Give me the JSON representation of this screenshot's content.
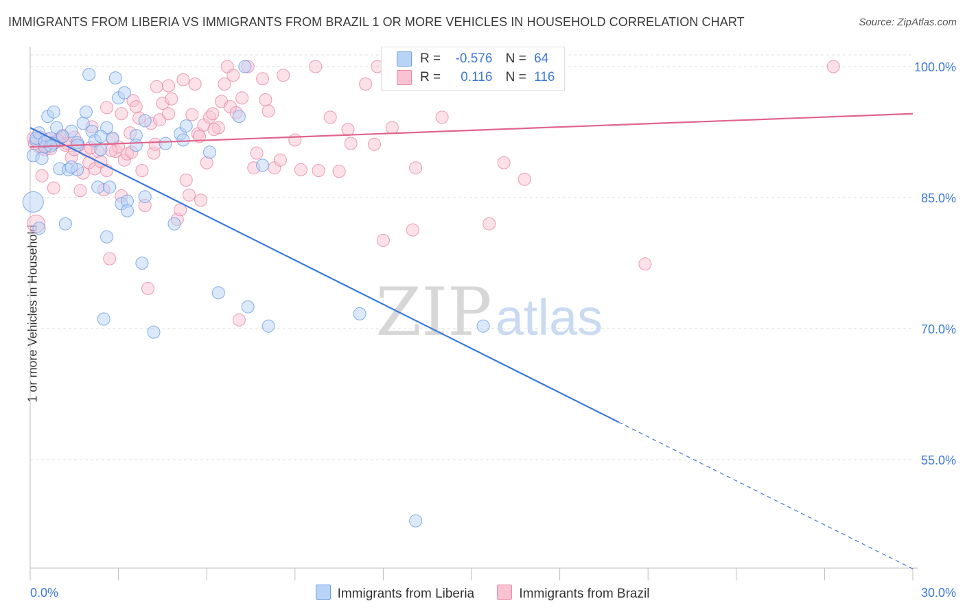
{
  "title": "IMMIGRANTS FROM LIBERIA VS IMMIGRANTS FROM BRAZIL 1 OR MORE VEHICLES IN HOUSEHOLD CORRELATION CHART",
  "source": "Source: ZipAtlas.com",
  "watermark": {
    "zip": "ZIP",
    "atlas": "atlas"
  },
  "legend": {
    "r_label": "R =",
    "n_label": "N =",
    "rows": [
      {
        "r": "-0.576",
        "n": "64",
        "fill": "#b9d3f5",
        "stroke": "#6d9ee6"
      },
      {
        "r": "0.116",
        "n": "116",
        "fill": "#f9c3d3",
        "stroke": "#e88aa7"
      }
    ]
  },
  "chart_data": {
    "type": "scatter",
    "xlabel": "",
    "ylabel": "1 or more Vehicles in Household",
    "xlim": [
      0,
      30
    ],
    "ylim": [
      40,
      102
    ],
    "x_tick_labels": [
      "0.0%",
      "30.0%"
    ],
    "y_ticks": [
      100,
      85,
      70,
      55
    ],
    "y_tick_labels": [
      "100.0%",
      "85.0%",
      "70.0%",
      "55.0%"
    ],
    "grid": "horizontal dashed",
    "series": [
      {
        "name": "Immigrants from Liberia",
        "color": "#6d9ee6",
        "fill": "#b9d3f5",
        "r": -0.576,
        "n": 64,
        "trend": {
          "x0": 0.0,
          "y0": 93.0,
          "x1": 20.0,
          "y1": 59.3,
          "dash_x1": 30.0,
          "dash_y1": 42.5
        },
        "points": [
          [
            0.1,
            89.8
          ],
          [
            0.1,
            84.5
          ],
          [
            0.2,
            91.5
          ],
          [
            0.3,
            81.5
          ],
          [
            0.4,
            89.5
          ],
          [
            0.5,
            90.8
          ],
          [
            0.6,
            94.3
          ],
          [
            0.7,
            91.8
          ],
          [
            0.8,
            94.8
          ],
          [
            0.9,
            93.0
          ],
          [
            1.0,
            88.3
          ],
          [
            1.2,
            82.0
          ],
          [
            1.3,
            88.2
          ],
          [
            1.4,
            92.6
          ],
          [
            1.6,
            91.3
          ],
          [
            1.6,
            88.2
          ],
          [
            1.8,
            93.5
          ],
          [
            1.9,
            94.8
          ],
          [
            2.0,
            99.1
          ],
          [
            2.1,
            92.6
          ],
          [
            2.2,
            91.5
          ],
          [
            2.3,
            86.2
          ],
          [
            2.4,
            90.5
          ],
          [
            2.5,
            71.1
          ],
          [
            2.6,
            80.5
          ],
          [
            2.7,
            86.2
          ],
          [
            2.8,
            91.8
          ],
          [
            2.9,
            98.7
          ],
          [
            3.0,
            96.4
          ],
          [
            3.1,
            84.3
          ],
          [
            3.2,
            97.0
          ],
          [
            3.3,
            84.6
          ],
          [
            3.3,
            83.5
          ],
          [
            3.6,
            92.1
          ],
          [
            3.8,
            77.5
          ],
          [
            3.9,
            85.1
          ],
          [
            4.2,
            69.6
          ],
          [
            4.6,
            91.2
          ],
          [
            4.9,
            82.0
          ],
          [
            5.1,
            92.3
          ],
          [
            5.3,
            93.2
          ],
          [
            6.1,
            90.2
          ],
          [
            6.4,
            74.1
          ],
          [
            7.1,
            94.3
          ],
          [
            7.3,
            100.0
          ],
          [
            7.4,
            72.5
          ],
          [
            7.9,
            88.7
          ],
          [
            8.1,
            70.3
          ],
          [
            11.2,
            71.7
          ],
          [
            13.1,
            48.0
          ],
          [
            15.4,
            70.3
          ],
          [
            0.2,
            91.8
          ],
          [
            0.8,
            91.2
          ],
          [
            1.6,
            91.0
          ],
          [
            3.9,
            93.8
          ],
          [
            2.6,
            93.0
          ],
          [
            1.1,
            92.0
          ],
          [
            0.3,
            92.4
          ],
          [
            0.5,
            91.4
          ],
          [
            1.4,
            88.5
          ],
          [
            2.4,
            92.0
          ],
          [
            3.6,
            91.0
          ],
          [
            5.2,
            91.6
          ],
          [
            0.7,
            90.9
          ]
        ]
      },
      {
        "name": "Immigrants from Brazil",
        "color": "#e88aa7",
        "fill": "#f9c3d3",
        "r": 0.116,
        "n": 116,
        "trend": {
          "x0": 0.0,
          "y0": 90.8,
          "x1": 30.0,
          "y1": 94.6
        },
        "points": [
          [
            0.1,
            91.8
          ],
          [
            0.2,
            82.0
          ],
          [
            0.3,
            90.8
          ],
          [
            0.4,
            87.5
          ],
          [
            0.5,
            90.5
          ],
          [
            0.6,
            91.7
          ],
          [
            0.7,
            90.6
          ],
          [
            0.8,
            86.1
          ],
          [
            0.9,
            91.4
          ],
          [
            1.0,
            91.8
          ],
          [
            1.1,
            92.1
          ],
          [
            1.2,
            91.0
          ],
          [
            1.4,
            89.6
          ],
          [
            1.5,
            91.9
          ],
          [
            1.5,
            90.5
          ],
          [
            1.7,
            85.8
          ],
          [
            1.8,
            87.8
          ],
          [
            1.9,
            90.4
          ],
          [
            2.0,
            89.0
          ],
          [
            2.1,
            93.1
          ],
          [
            2.2,
            88.3
          ],
          [
            2.3,
            90.3
          ],
          [
            2.4,
            89.1
          ],
          [
            2.5,
            85.9
          ],
          [
            2.6,
            88.1
          ],
          [
            2.6,
            95.3
          ],
          [
            2.7,
            78.0
          ],
          [
            2.8,
            91.7
          ],
          [
            2.9,
            90.3
          ],
          [
            3.0,
            90.8
          ],
          [
            3.1,
            94.6
          ],
          [
            3.1,
            85.2
          ],
          [
            3.2,
            89.3
          ],
          [
            3.3,
            90.0
          ],
          [
            3.4,
            92.4
          ],
          [
            3.5,
            96.1
          ],
          [
            3.6,
            95.4
          ],
          [
            3.7,
            94.1
          ],
          [
            3.8,
            88.1
          ],
          [
            3.9,
            84.1
          ],
          [
            4.0,
            74.6
          ],
          [
            4.1,
            93.5
          ],
          [
            4.2,
            90.1
          ],
          [
            4.3,
            97.7
          ],
          [
            4.4,
            93.9
          ],
          [
            4.5,
            95.8
          ],
          [
            4.7,
            94.6
          ],
          [
            4.7,
            97.8
          ],
          [
            4.8,
            96.3
          ],
          [
            5.0,
            82.5
          ],
          [
            5.1,
            83.6
          ],
          [
            5.2,
            98.5
          ],
          [
            5.3,
            87.0
          ],
          [
            5.4,
            85.3
          ],
          [
            5.5,
            94.5
          ],
          [
            5.6,
            98.0
          ],
          [
            5.7,
            92.3
          ],
          [
            5.8,
            84.7
          ],
          [
            5.9,
            93.3
          ],
          [
            6.0,
            89.0
          ],
          [
            6.1,
            94.2
          ],
          [
            6.2,
            94.6
          ],
          [
            6.4,
            93.0
          ],
          [
            6.5,
            96.0
          ],
          [
            6.6,
            98.0
          ],
          [
            6.7,
            100.0
          ],
          [
            6.8,
            95.4
          ],
          [
            6.9,
            99.0
          ],
          [
            7.0,
            94.7
          ],
          [
            7.1,
            71.0
          ],
          [
            7.2,
            96.4
          ],
          [
            7.4,
            100.0
          ],
          [
            7.6,
            88.4
          ],
          [
            7.7,
            90.1
          ],
          [
            7.9,
            98.6
          ],
          [
            8.0,
            96.2
          ],
          [
            8.1,
            94.9
          ],
          [
            8.3,
            88.4
          ],
          [
            8.5,
            89.3
          ],
          [
            8.6,
            99.0
          ],
          [
            9.0,
            91.6
          ],
          [
            9.7,
            100.0
          ],
          [
            9.8,
            88.1
          ],
          [
            10.2,
            94.2
          ],
          [
            10.8,
            92.8
          ],
          [
            10.9,
            91.2
          ],
          [
            11.4,
            98.0
          ],
          [
            11.7,
            91.1
          ],
          [
            11.8,
            100.0
          ],
          [
            12.0,
            80.1
          ],
          [
            12.3,
            93.0
          ],
          [
            13.0,
            81.3
          ],
          [
            13.1,
            88.4
          ],
          [
            13.3,
            100.0
          ],
          [
            14.0,
            94.2
          ],
          [
            14.7,
            100.0
          ],
          [
            15.6,
            82.0
          ],
          [
            16.1,
            89.0
          ],
          [
            16.8,
            87.1
          ],
          [
            20.9,
            77.4
          ],
          [
            27.3,
            100.0
          ],
          [
            0.15,
            91.2
          ],
          [
            0.35,
            91.9
          ],
          [
            0.55,
            90.9
          ],
          [
            0.75,
            91.3
          ],
          [
            0.95,
            91.5
          ],
          [
            1.25,
            91.2
          ],
          [
            1.65,
            91.0
          ],
          [
            2.05,
            90.7
          ],
          [
            2.75,
            90.4
          ],
          [
            3.45,
            90.2
          ],
          [
            4.25,
            91.1
          ],
          [
            5.75,
            92.0
          ],
          [
            6.25,
            92.8
          ],
          [
            9.2,
            88.2
          ],
          [
            10.5,
            88.0
          ]
        ]
      }
    ]
  }
}
